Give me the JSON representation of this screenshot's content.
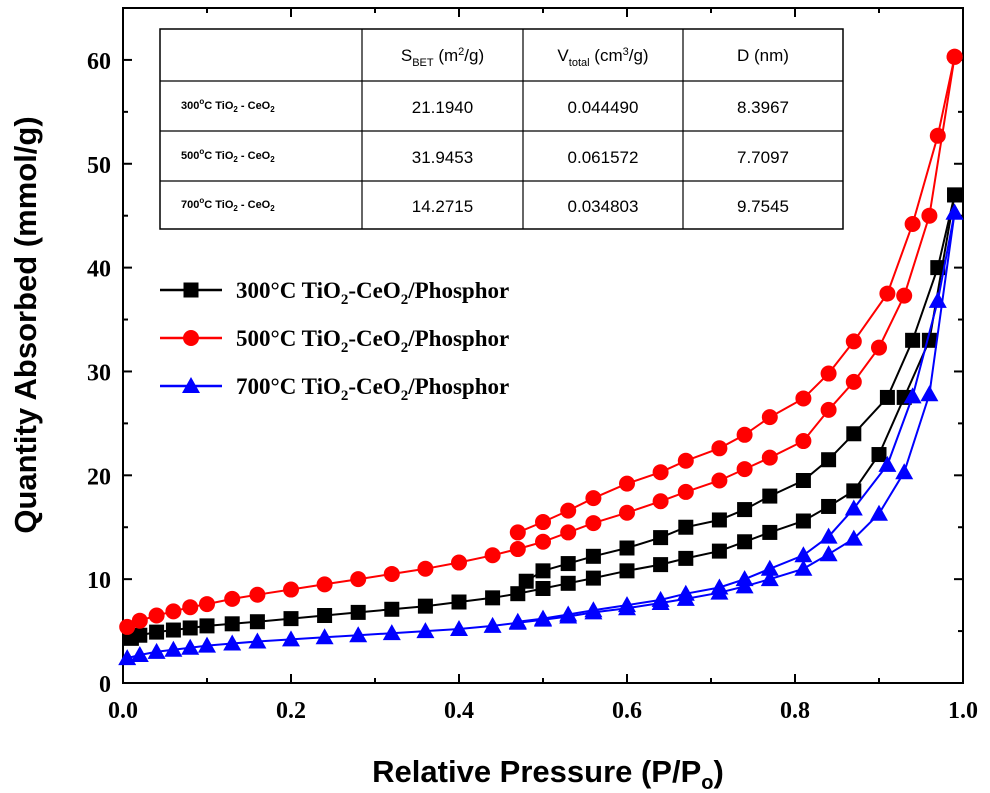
{
  "chart_data": {
    "type": "line",
    "xlabel": "Relative Pressure (P/P",
    "xlabel_sub": "o",
    "xlabel_end": ")",
    "ylabel": "Quantity Absorbed (mmol/g)",
    "xlim": [
      0.0,
      1.0
    ],
    "ylim": [
      0,
      65
    ],
    "xticks": [
      "0.0",
      "0.2",
      "0.4",
      "0.6",
      "0.8",
      "1.0"
    ],
    "xtick_values": [
      0.0,
      0.2,
      0.4,
      0.6,
      0.8,
      1.0
    ],
    "yticks": [
      "0",
      "10",
      "20",
      "30",
      "40",
      "50",
      "60"
    ],
    "ytick_values": [
      0,
      10,
      20,
      30,
      40,
      50,
      60
    ],
    "grid": false,
    "legend": "left",
    "series": [
      {
        "legend_parts": [
          "300°C TiO",
          "2",
          "-CeO",
          "2",
          "/Phosphor"
        ],
        "color": "#000000",
        "marker": "square",
        "adsorption": [
          [
            0.01,
            4.3
          ],
          [
            0.02,
            4.6
          ],
          [
            0.04,
            4.9
          ],
          [
            0.06,
            5.1
          ],
          [
            0.08,
            5.3
          ],
          [
            0.1,
            5.5
          ],
          [
            0.13,
            5.7
          ],
          [
            0.16,
            5.9
          ],
          [
            0.2,
            6.2
          ],
          [
            0.24,
            6.5
          ],
          [
            0.28,
            6.8
          ],
          [
            0.32,
            7.1
          ],
          [
            0.36,
            7.4
          ],
          [
            0.4,
            7.8
          ],
          [
            0.44,
            8.2
          ],
          [
            0.47,
            8.6
          ],
          [
            0.5,
            9.1
          ],
          [
            0.53,
            9.6
          ],
          [
            0.56,
            10.1
          ],
          [
            0.6,
            10.8
          ],
          [
            0.64,
            11.4
          ],
          [
            0.67,
            12.0
          ],
          [
            0.71,
            12.7
          ],
          [
            0.74,
            13.6
          ],
          [
            0.77,
            14.5
          ],
          [
            0.81,
            15.6
          ],
          [
            0.84,
            17.0
          ],
          [
            0.87,
            18.5
          ],
          [
            0.9,
            22.0
          ],
          [
            0.93,
            27.5
          ],
          [
            0.96,
            33.0
          ],
          [
            0.99,
            47.0
          ]
        ],
        "desorption": [
          [
            0.99,
            47.0
          ],
          [
            0.97,
            40.0
          ],
          [
            0.94,
            33.0
          ],
          [
            0.91,
            27.5
          ],
          [
            0.87,
            24.0
          ],
          [
            0.84,
            21.5
          ],
          [
            0.81,
            19.5
          ],
          [
            0.77,
            18.0
          ],
          [
            0.74,
            16.7
          ],
          [
            0.71,
            15.7
          ],
          [
            0.67,
            15.0
          ],
          [
            0.64,
            14.0
          ],
          [
            0.6,
            13.0
          ],
          [
            0.56,
            12.2
          ],
          [
            0.53,
            11.5
          ],
          [
            0.5,
            10.8
          ],
          [
            0.48,
            9.8
          ]
        ]
      },
      {
        "legend_parts": [
          "500°C TiO",
          "2",
          "-CeO",
          "2",
          "/Phosphor"
        ],
        "color": "#ff0000",
        "marker": "circle",
        "adsorption": [
          [
            0.005,
            5.4
          ],
          [
            0.02,
            6.0
          ],
          [
            0.04,
            6.5
          ],
          [
            0.06,
            6.9
          ],
          [
            0.08,
            7.3
          ],
          [
            0.1,
            7.6
          ],
          [
            0.13,
            8.1
          ],
          [
            0.16,
            8.5
          ],
          [
            0.2,
            9.0
          ],
          [
            0.24,
            9.5
          ],
          [
            0.28,
            10.0
          ],
          [
            0.32,
            10.5
          ],
          [
            0.36,
            11.0
          ],
          [
            0.4,
            11.6
          ],
          [
            0.44,
            12.3
          ],
          [
            0.47,
            12.9
          ],
          [
            0.5,
            13.6
          ],
          [
            0.53,
            14.5
          ],
          [
            0.56,
            15.4
          ],
          [
            0.6,
            16.4
          ],
          [
            0.64,
            17.5
          ],
          [
            0.67,
            18.4
          ],
          [
            0.71,
            19.5
          ],
          [
            0.74,
            20.6
          ],
          [
            0.77,
            21.7
          ],
          [
            0.81,
            23.3
          ],
          [
            0.84,
            26.3
          ],
          [
            0.87,
            29.0
          ],
          [
            0.9,
            32.3
          ],
          [
            0.93,
            37.3
          ],
          [
            0.96,
            45.0
          ],
          [
            0.99,
            60.3
          ]
        ],
        "desorption": [
          [
            0.99,
            60.3
          ],
          [
            0.97,
            52.7
          ],
          [
            0.94,
            44.2
          ],
          [
            0.91,
            37.5
          ],
          [
            0.87,
            32.9
          ],
          [
            0.84,
            29.8
          ],
          [
            0.81,
            27.4
          ],
          [
            0.77,
            25.6
          ],
          [
            0.74,
            23.9
          ],
          [
            0.71,
            22.6
          ],
          [
            0.67,
            21.4
          ],
          [
            0.64,
            20.3
          ],
          [
            0.6,
            19.2
          ],
          [
            0.56,
            17.8
          ],
          [
            0.53,
            16.6
          ],
          [
            0.5,
            15.5
          ],
          [
            0.47,
            14.5
          ]
        ]
      },
      {
        "legend_parts": [
          "700°C TiO",
          "2",
          "-CeO",
          "2",
          "/Phosphor"
        ],
        "color": "#0000ff",
        "marker": "triangle",
        "adsorption": [
          [
            0.005,
            2.4
          ],
          [
            0.02,
            2.7
          ],
          [
            0.04,
            3.0
          ],
          [
            0.06,
            3.2
          ],
          [
            0.08,
            3.4
          ],
          [
            0.1,
            3.6
          ],
          [
            0.13,
            3.8
          ],
          [
            0.16,
            4.0
          ],
          [
            0.2,
            4.2
          ],
          [
            0.24,
            4.4
          ],
          [
            0.28,
            4.6
          ],
          [
            0.32,
            4.8
          ],
          [
            0.36,
            5.0
          ],
          [
            0.4,
            5.2
          ],
          [
            0.44,
            5.5
          ],
          [
            0.47,
            5.8
          ],
          [
            0.5,
            6.1
          ],
          [
            0.53,
            6.4
          ],
          [
            0.56,
            6.8
          ],
          [
            0.6,
            7.2
          ],
          [
            0.64,
            7.7
          ],
          [
            0.67,
            8.1
          ],
          [
            0.71,
            8.7
          ],
          [
            0.74,
            9.3
          ],
          [
            0.77,
            10.0
          ],
          [
            0.81,
            11.0
          ],
          [
            0.84,
            12.4
          ],
          [
            0.87,
            13.9
          ],
          [
            0.9,
            16.3
          ],
          [
            0.93,
            20.3
          ],
          [
            0.96,
            27.8
          ],
          [
            0.99,
            45.3
          ]
        ],
        "desorption": [
          [
            0.99,
            45.3
          ],
          [
            0.97,
            36.8
          ],
          [
            0.94,
            27.6
          ],
          [
            0.91,
            21.0
          ],
          [
            0.87,
            16.8
          ],
          [
            0.84,
            14.1
          ],
          [
            0.81,
            12.3
          ],
          [
            0.77,
            11.0
          ],
          [
            0.74,
            10.0
          ],
          [
            0.71,
            9.2
          ],
          [
            0.67,
            8.6
          ],
          [
            0.64,
            8.0
          ],
          [
            0.6,
            7.5
          ],
          [
            0.56,
            7.0
          ],
          [
            0.53,
            6.6
          ],
          [
            0.5,
            6.2
          ],
          [
            0.47,
            5.9
          ]
        ]
      }
    ],
    "inset_table": {
      "headers": [
        {
          "main": "S",
          "sub": "BET",
          "rest": " (m",
          "sup": "2",
          "end": "/g)"
        },
        {
          "main": "V",
          "sub": "total",
          "rest": " (cm",
          "sup": "3",
          "end": "/g)"
        },
        {
          "main": "D (nm)",
          "sub": "",
          "rest": "",
          "sup": "",
          "end": ""
        }
      ],
      "rows": [
        {
          "label_parts": [
            "300",
            "o",
            "C  TiO",
            "2",
            " - CeO",
            "2"
          ],
          "values": [
            "21.1940",
            "0.044490",
            "8.3967"
          ]
        },
        {
          "label_parts": [
            "500",
            "o",
            "C  TiO",
            "2",
            " - CeO",
            "2"
          ],
          "values": [
            "31.9453",
            "0.061572",
            "7.7097"
          ]
        },
        {
          "label_parts": [
            "700",
            "o",
            "C  TiO",
            "2",
            " - CeO",
            "2"
          ],
          "values": [
            "14.2715",
            "0.034803",
            "9.7545"
          ]
        }
      ]
    }
  }
}
